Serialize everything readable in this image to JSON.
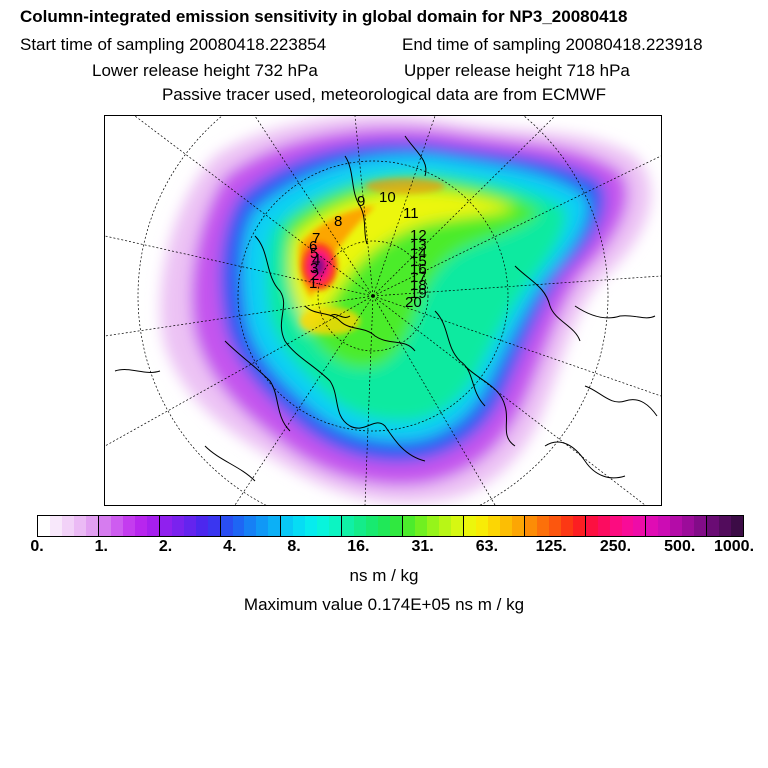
{
  "header": {
    "title": "Column-integrated emission sensitivity in global domain for NP3_20080418",
    "start_time": "Start time of sampling 20080418.223854",
    "end_time": "End time of sampling 20080418.223918",
    "lower_height": "Lower release height  732 hPa",
    "upper_height": "Upper release height  718 hPa",
    "tracer_note": "Passive tracer used, meteorological data are from ECMWF"
  },
  "map": {
    "projection": "north-polar-stereographic",
    "track_labels": [
      "1",
      "2",
      "3",
      "4",
      "5",
      "6",
      "7",
      "8",
      "9",
      "10",
      "11",
      "12",
      "13",
      "14",
      "15",
      "16",
      "17",
      "18",
      "19",
      "20"
    ]
  },
  "colorbar": {
    "tick_labels": [
      "0.",
      "1.",
      "2.",
      "4.",
      "8.",
      "16.",
      "31.",
      "63.",
      "125.",
      "250.",
      "500.",
      "1000."
    ],
    "colors": [
      "#ffffff",
      "#f8e8fb",
      "#f2d2f8",
      "#ebbaf5",
      "#e29ff2",
      "#d67cef",
      "#ce5cf0",
      "#c43cef",
      "#b826ee",
      "#a61fee",
      "#9020ee",
      "#7a22ee",
      "#6424ee",
      "#4c27ee",
      "#3a36f0",
      "#2a4ef2",
      "#1e66f4",
      "#1680f5",
      "#1098f6",
      "#0cb0f6",
      "#08c8f6",
      "#06dcf4",
      "#06ecee",
      "#08f4dc",
      "#0cf4c2",
      "#10f0a6",
      "#14ec8a",
      "#18ea70",
      "#20e858",
      "#30e840",
      "#4cec2c",
      "#70f020",
      "#96f41a",
      "#b8f616",
      "#d6f812",
      "#ecf60c",
      "#f8ec06",
      "#fcd604",
      "#fcbe04",
      "#fca604",
      "#fc8c06",
      "#fc700a",
      "#fc560e",
      "#fc3814",
      "#fc1e22",
      "#fc1040",
      "#fc0c60",
      "#fc0c80",
      "#f80c98",
      "#ee0ca8",
      "#e00cb4",
      "#cc0cb4",
      "#b40ca8",
      "#9c0c9a",
      "#820c88",
      "#6a0c74",
      "#520c5c",
      "#3c0c46"
    ],
    "unit": "ns m / kg",
    "max_value": "Maximum value  0.174E+05 ns m / kg"
  }
}
